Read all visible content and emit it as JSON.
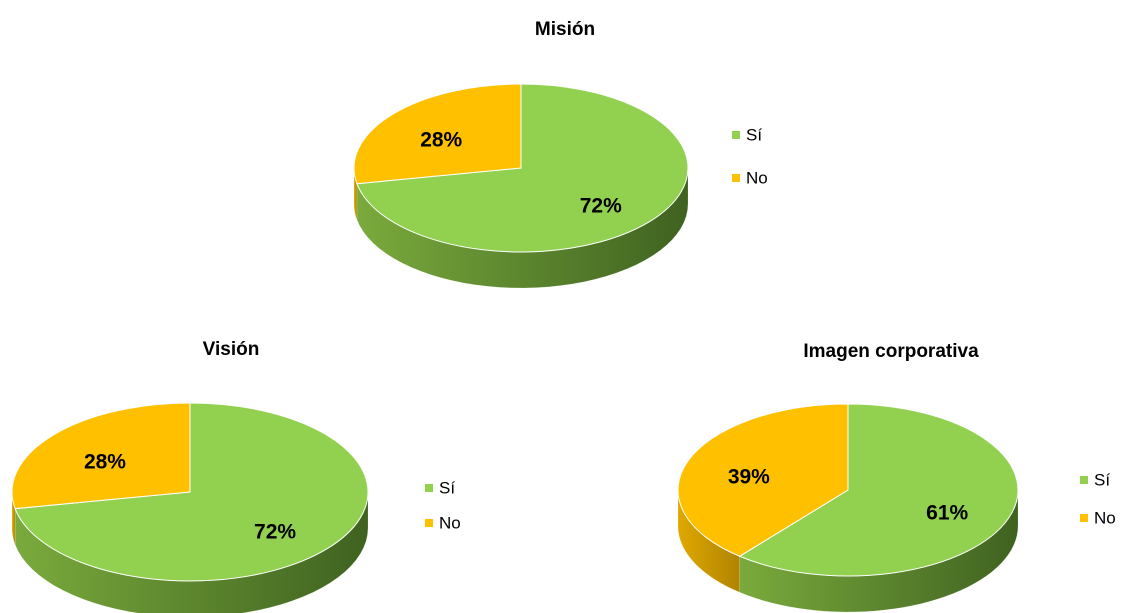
{
  "chart_data": [
    {
      "type": "pie",
      "title": "Misión",
      "categories": [
        "Sí",
        "No"
      ],
      "values": [
        72,
        28
      ],
      "value_labels": [
        "72%",
        "28%"
      ],
      "colors": [
        "#92d050",
        "#ffc000"
      ],
      "legend": "right"
    },
    {
      "type": "pie",
      "title": "Visión",
      "categories": [
        "Sí",
        "No"
      ],
      "values": [
        72,
        28
      ],
      "value_labels": [
        "72%",
        "28%"
      ],
      "colors": [
        "#92d050",
        "#ffc000"
      ],
      "legend": "right"
    },
    {
      "type": "pie",
      "title": "Imagen corporativa",
      "categories": [
        "Sí",
        "No"
      ],
      "values": [
        61,
        39
      ],
      "value_labels": [
        "61%",
        "39%"
      ],
      "colors": [
        "#92d050",
        "#ffc000"
      ],
      "legend": "right"
    }
  ]
}
